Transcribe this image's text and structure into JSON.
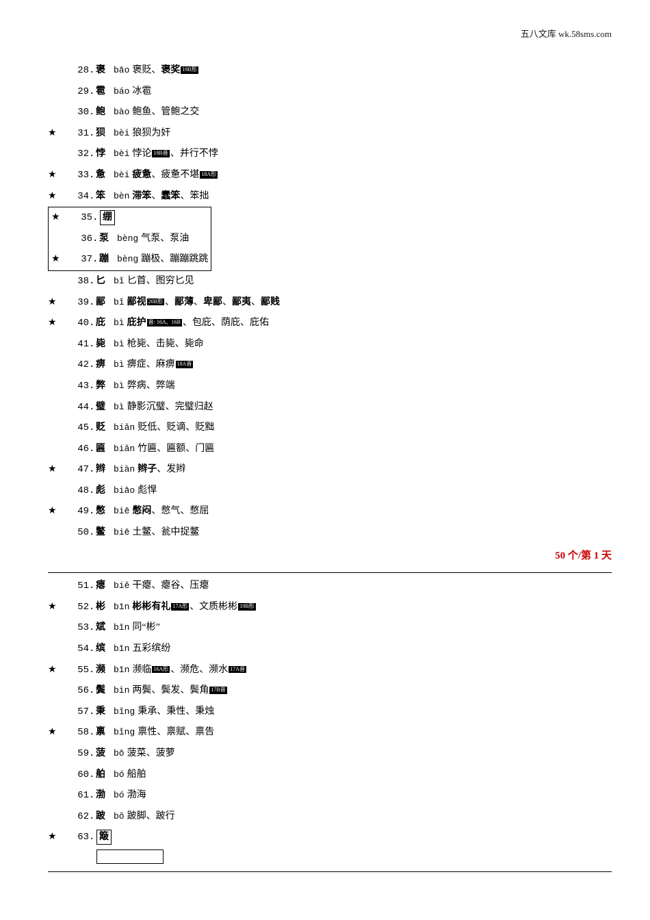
{
  "header_right": "五八文库 wk.58sms.com",
  "day_marker": "50 个/第 1 天",
  "entries": [
    {
      "n": 28,
      "star": false,
      "ch": "褒",
      "py": "bāo",
      "parts": [
        {
          "t": "褒贬、"
        },
        {
          "t": "褒奖",
          "b": true
        },
        {
          "tag": "19B形"
        }
      ]
    },
    {
      "n": 29,
      "star": false,
      "ch": "雹",
      "py": "báo",
      "parts": [
        {
          "t": "冰雹"
        }
      ]
    },
    {
      "n": 30,
      "star": false,
      "ch": "鲍",
      "py": "bào",
      "parts": [
        {
          "t": "鲍鱼、管鲍之交"
        }
      ]
    },
    {
      "n": 31,
      "star": true,
      "ch": "狈",
      "py": "bèi",
      "parts": [
        {
          "t": "狼狈为奸"
        }
      ]
    },
    {
      "n": 32,
      "star": false,
      "ch": "悖",
      "py": "bèi",
      "parts": [
        {
          "t": "悖论"
        },
        {
          "tag": "18B音"
        },
        {
          "t": "、并行不悖"
        }
      ]
    },
    {
      "n": 33,
      "star": true,
      "ch": "惫",
      "py": "bèi",
      "parts": [
        {
          "t": "疲惫",
          "b": true
        },
        {
          "t": "、疲惫不堪"
        },
        {
          "tag": "18A形"
        }
      ]
    },
    {
      "n": 34,
      "star": true,
      "ch": "笨",
      "py": "bèn",
      "parts": [
        {
          "t": "滞笨",
          "b": true
        },
        {
          "t": "、"
        },
        {
          "t": "蠢笨",
          "b": true
        },
        {
          "t": "、笨拙"
        }
      ]
    },
    {
      "n": 35,
      "star": true,
      "ch": "绷",
      "py": "",
      "parts": [],
      "frame_char": true,
      "frame_group_start": true
    },
    {
      "n": 36,
      "star": false,
      "ch": "泵",
      "py": "bèng",
      "parts": [
        {
          "t": "气泵、泵油"
        }
      ],
      "frame_group_mid": true
    },
    {
      "n": 37,
      "star": true,
      "ch": "蹦",
      "py": "bèng",
      "parts": [
        {
          "t": "蹦极、蹦蹦跳跳"
        }
      ],
      "frame_group_end": true
    },
    {
      "n": 38,
      "star": false,
      "ch": "匕",
      "py": "bǐ",
      "parts": [
        {
          "t": "匕首、图穷匕见"
        }
      ]
    },
    {
      "n": 39,
      "star": true,
      "ch": "鄙",
      "py": "bǐ",
      "parts": [
        {
          "t": "鄙视",
          "b": true
        },
        {
          "tag": "20B形"
        },
        {
          "t": "、"
        },
        {
          "t": "鄙薄",
          "b": true
        },
        {
          "t": "、"
        },
        {
          "t": "卑鄙",
          "b": true
        },
        {
          "t": "、"
        },
        {
          "t": "鄙夷",
          "b": true
        },
        {
          "t": "、"
        },
        {
          "t": "鄙贱",
          "b": true
        }
      ]
    },
    {
      "n": 40,
      "star": true,
      "ch": "庇",
      "py": "bì",
      "parts": [
        {
          "t": "庇护",
          "b": true
        },
        {
          "tag": "音: 16A、16B"
        },
        {
          "t": "、包庇、荫庇、庇佑"
        }
      ]
    },
    {
      "n": 41,
      "star": false,
      "ch": "毙",
      "py": "bì",
      "parts": [
        {
          "t": "枪毙、击毙、毙命"
        }
      ]
    },
    {
      "n": 42,
      "star": false,
      "ch": "痹",
      "py": "bì",
      "parts": [
        {
          "t": "痹症、麻痹"
        },
        {
          "tag": "18A音"
        }
      ]
    },
    {
      "n": 43,
      "star": false,
      "ch": "弊",
      "py": "bì",
      "parts": [
        {
          "t": "弊病、弊端"
        }
      ]
    },
    {
      "n": 44,
      "star": false,
      "ch": "璧",
      "py": "bì",
      "parts": [
        {
          "t": "静影沉璧、完璧归赵"
        }
      ]
    },
    {
      "n": 45,
      "star": false,
      "ch": "贬",
      "py": "biǎn",
      "parts": [
        {
          "t": "贬低、贬谪、贬黜"
        }
      ]
    },
    {
      "n": 46,
      "star": false,
      "ch": "匾",
      "py": "biǎn",
      "parts": [
        {
          "t": "竹匾、匾额、门匾"
        }
      ]
    },
    {
      "n": 47,
      "star": true,
      "ch": "辫",
      "py": "biàn",
      "parts": [
        {
          "t": "辫子",
          "b": true
        },
        {
          "t": "、发辫"
        }
      ]
    },
    {
      "n": 48,
      "star": false,
      "ch": "彪",
      "py": "biāo",
      "parts": [
        {
          "t": "彪悍"
        }
      ]
    },
    {
      "n": 49,
      "star": true,
      "ch": "憋",
      "py": "biē",
      "parts": [
        {
          "t": "憋闷",
          "b": true
        },
        {
          "t": "、憋气、憋屈"
        }
      ]
    },
    {
      "n": 50,
      "star": false,
      "ch": "鳖",
      "py": "biē",
      "parts": [
        {
          "t": "土鳖、瓮中捉鳖"
        }
      ]
    }
  ],
  "entries2": [
    {
      "n": 51,
      "star": false,
      "ch": "瘪",
      "py": "biě",
      "parts": [
        {
          "t": "干瘪、瘪谷、压瘪"
        }
      ]
    },
    {
      "n": 52,
      "star": true,
      "ch": "彬",
      "py": "bīn",
      "parts": [
        {
          "t": "彬彬有礼",
          "b": true
        },
        {
          "tag": "17A形"
        },
        {
          "t": "、文质彬彬"
        },
        {
          "tag": "19B形"
        }
      ]
    },
    {
      "n": 53,
      "star": false,
      "ch": "斌",
      "py": "bīn",
      "parts": [
        {
          "t": "同“彬”"
        }
      ]
    },
    {
      "n": 54,
      "star": false,
      "ch": "缤",
      "py": "bīn",
      "parts": [
        {
          "t": "五彩缤纷"
        }
      ]
    },
    {
      "n": 55,
      "star": true,
      "ch": "濒",
      "py": "bīn",
      "parts": [
        {
          "t": "濒临"
        },
        {
          "tag": "16A形"
        },
        {
          "t": "、濒危、濒水"
        },
        {
          "tag": "17A音"
        }
      ]
    },
    {
      "n": 56,
      "star": false,
      "ch": "鬓",
      "py": "bìn",
      "parts": [
        {
          "t": "两鬓、鬓发、鬓角"
        },
        {
          "tag": "17B音"
        }
      ]
    },
    {
      "n": 57,
      "star": false,
      "ch": "秉",
      "py": "bǐng",
      "parts": [
        {
          "t": "秉承、秉性、秉烛"
        }
      ]
    },
    {
      "n": 58,
      "star": true,
      "ch": "禀",
      "py": "bǐng",
      "parts": [
        {
          "t": "禀性、禀赋、禀告"
        }
      ]
    },
    {
      "n": 59,
      "star": false,
      "ch": "菠",
      "py": "bō",
      "parts": [
        {
          "t": "菠菜、菠萝"
        }
      ]
    },
    {
      "n": 60,
      "star": false,
      "ch": "舶",
      "py": "bó",
      "parts": [
        {
          "t": "船舶"
        }
      ]
    },
    {
      "n": 61,
      "star": false,
      "ch": "渤",
      "py": "bó",
      "parts": [
        {
          "t": "渤海"
        }
      ]
    },
    {
      "n": 62,
      "star": false,
      "ch": "跛",
      "py": "bǒ",
      "parts": [
        {
          "t": "跛脚、跛行"
        }
      ]
    },
    {
      "n": 63,
      "star": true,
      "ch": "簸",
      "py": "",
      "parts": [],
      "frame_char": true,
      "frame_box_after": true
    }
  ]
}
